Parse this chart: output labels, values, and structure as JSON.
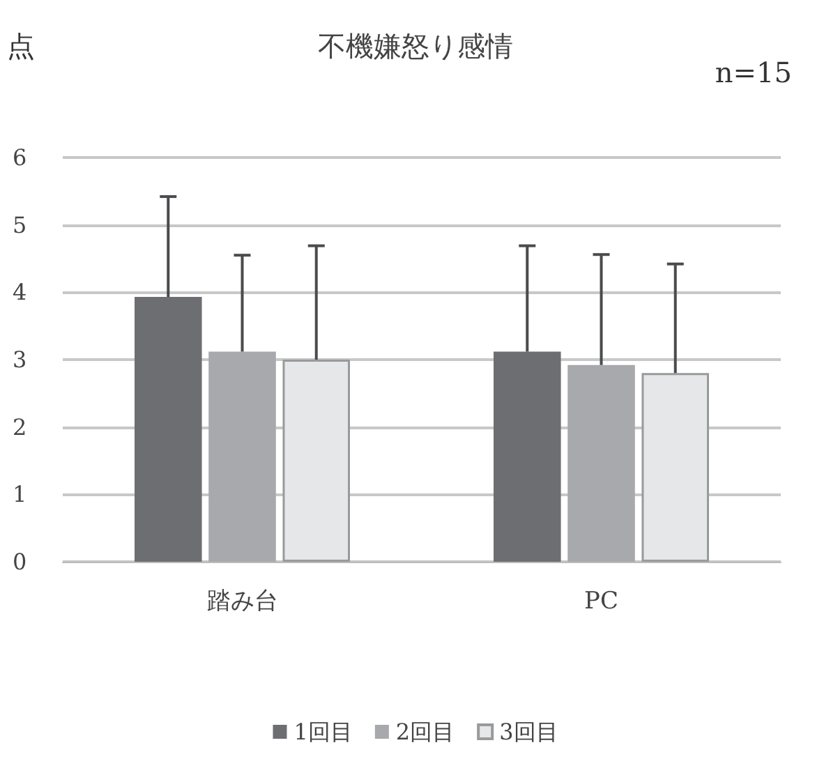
{
  "chart_data": {
    "type": "bar",
    "title": "不機嫌怒り感情",
    "ylabel": "点",
    "annotations": [
      "n=15"
    ],
    "categories": [
      "踏み台",
      "PC"
    ],
    "series": [
      {
        "name": "1回目",
        "color": "#6d6e71",
        "values": [
          3.93,
          3.12
        ],
        "errors": [
          [
            3.93,
            5.42
          ],
          [
            3.12,
            4.69
          ]
        ]
      },
      {
        "name": "2回目",
        "color": "#a7a9ac",
        "values": [
          3.12,
          2.92
        ],
        "errors": [
          [
            3.12,
            4.55
          ],
          [
            2.92,
            4.56
          ]
        ]
      },
      {
        "name": "3回目",
        "color": "#e6e7e8",
        "values": [
          3.0,
          2.8
        ],
        "errors": [
          [
            3.0,
            4.69
          ],
          [
            2.8,
            4.42
          ]
        ]
      }
    ],
    "ylim": [
      0,
      6
    ],
    "yticks": [
      0,
      1,
      2,
      3,
      4,
      5,
      6
    ],
    "grid": "y",
    "legend": "bottom"
  }
}
